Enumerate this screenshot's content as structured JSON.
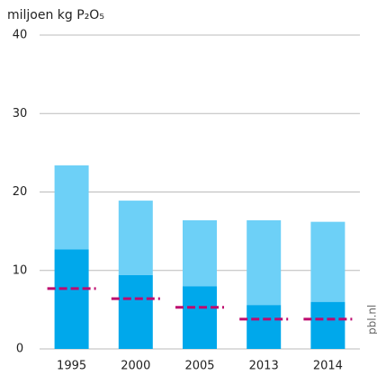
{
  "chart_data": {
    "type": "stacked-bar",
    "title": "miljoen kg P₂O₅",
    "source": "pbl.nl",
    "categories": [
      "1995",
      "2000",
      "2005",
      "2013",
      "2014"
    ],
    "series": [
      {
        "color": "#00a8eb",
        "values": [
          12.7,
          9.4,
          8.0,
          5.6,
          6.0
        ]
      },
      {
        "color": "#6dd0f7",
        "values": [
          10.7,
          9.5,
          8.4,
          10.8,
          10.2
        ]
      }
    ],
    "targets": {
      "color": "#be0a6e",
      "style": "dashed",
      "values": [
        7.7,
        6.4,
        5.3,
        3.8,
        3.8
      ]
    },
    "ylim": [
      0,
      40
    ],
    "yticks": [
      0,
      10,
      20,
      30,
      40
    ],
    "grid": true
  }
}
